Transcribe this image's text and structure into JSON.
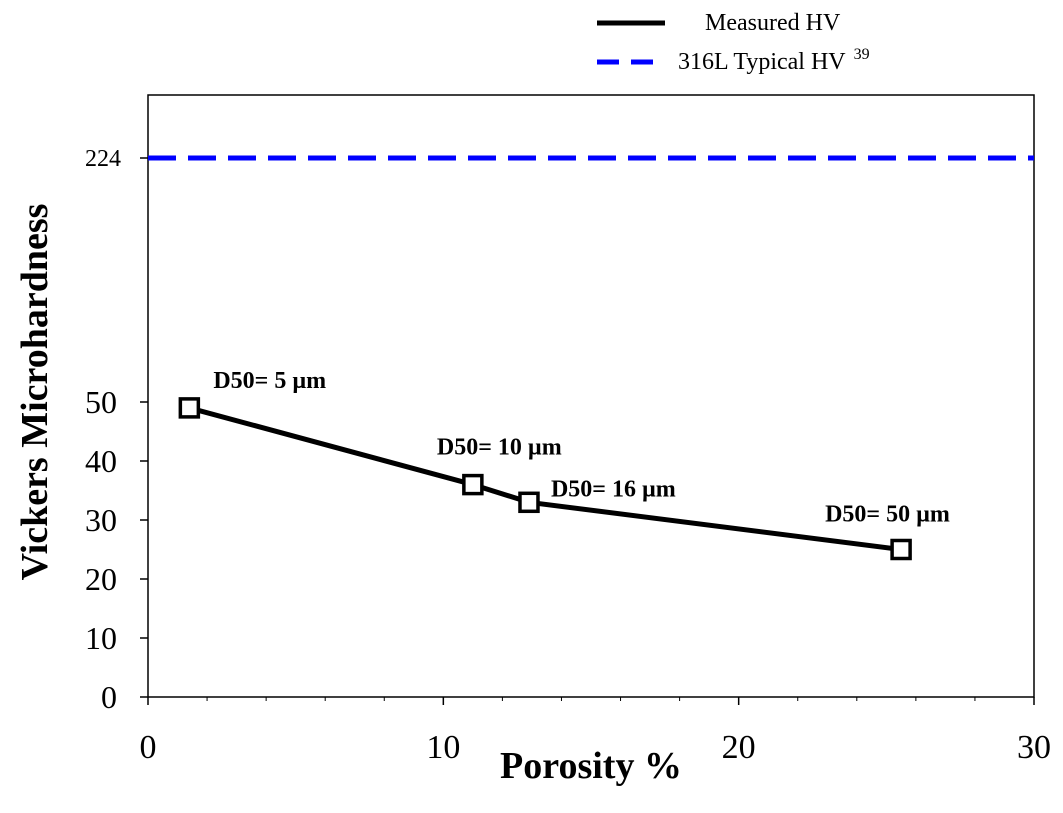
{
  "colors": {
    "measured": "#000000",
    "reference": "#0000ff",
    "axis": "#000000",
    "background": "#ffffff"
  },
  "legend": {
    "placement": "top-right, outside plot",
    "items": [
      {
        "label": "Measured HV",
        "superscript": "",
        "series": "measured"
      },
      {
        "label": "316L Typical HV",
        "superscript": "39",
        "series": "reference"
      }
    ]
  },
  "chart_data": {
    "type": "line",
    "title": "",
    "xlabel": "Porosity %",
    "ylabel": "Vickers Microhardness",
    "xlim": [
      0,
      30
    ],
    "ylim": [
      0,
      50
    ],
    "y_axis_break": true,
    "xticks": [
      0,
      10,
      20,
      30
    ],
    "yticks": [
      0,
      10,
      20,
      30,
      40,
      50,
      224
    ],
    "grid": false,
    "series": [
      {
        "name": "Measured HV",
        "style": "solid line with open square markers",
        "x": [
          1.4,
          11.0,
          12.9,
          25.5
        ],
        "y": [
          49,
          36,
          33,
          25
        ],
        "point_labels": [
          "D50= 5 µm",
          "D50= 10 µm",
          "D50= 16 µm",
          "D50= 50 µm"
        ]
      },
      {
        "name": "316L Typical HV",
        "style": "dashed horizontal line",
        "y": 224
      }
    ]
  }
}
